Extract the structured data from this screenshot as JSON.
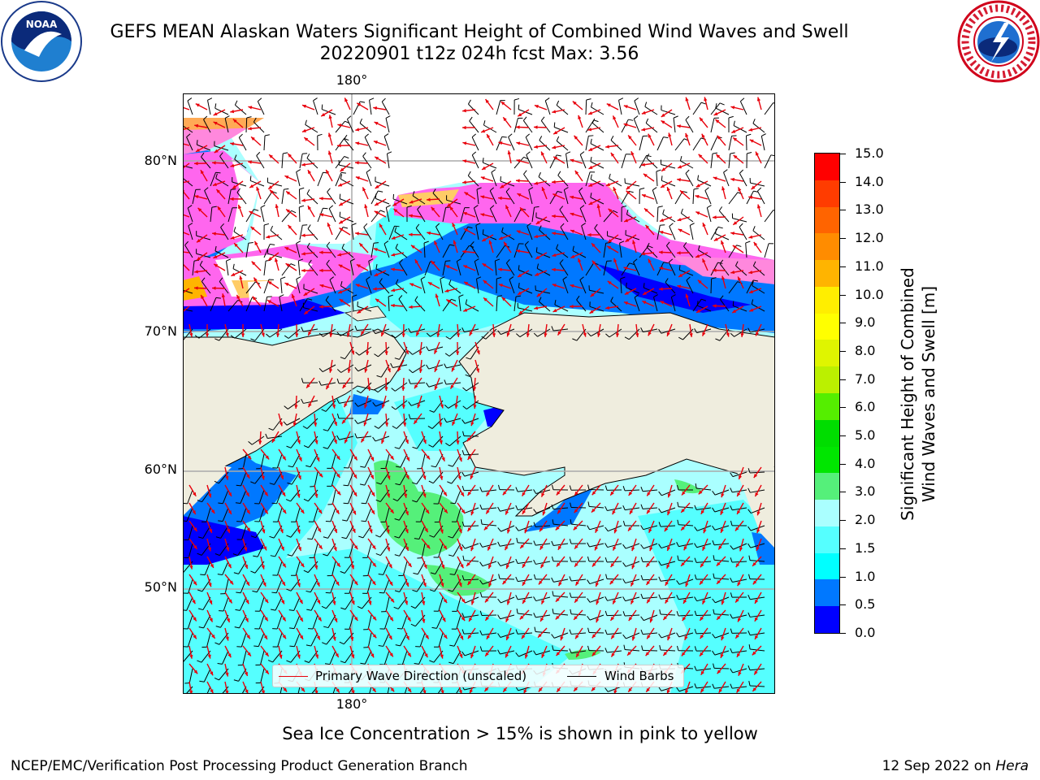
{
  "header": {
    "title_line1": "GEFS MEAN Alaskan Waters Significant Height of Combined Wind Waves and Swell",
    "title_line2": "20220901 t12z 024h fcst   Max: 3.56"
  },
  "logos": {
    "left": "NOAA",
    "right": "NATIONAL WEATHER SERVICE"
  },
  "map": {
    "lon_labels": [
      "180°",
      "180°"
    ],
    "lat_labels": [
      "80°N",
      "70°N",
      "60°N",
      "50°N"
    ],
    "legend": {
      "wave_direction": "Primary Wave Direction (unscaled)",
      "wind_barbs": "Wind Barbs",
      "wave_direction_color": "#e8000b",
      "wind_barb_color": "#000000"
    },
    "land_color": "#efedde",
    "sea_color": "#aaffff"
  },
  "colorbar": {
    "title_line1": "Significant Height of Combined",
    "title_line2": "Wind Waves and Swell [m]",
    "ticks": [
      "15.0",
      "14.0",
      "13.0",
      "12.0",
      "11.0",
      "10.0",
      "9.0",
      "8.0",
      "7.0",
      "6.0",
      "5.0",
      "4.0",
      "3.0",
      "2.0",
      "1.5",
      "1.0",
      "0.5",
      "0.0"
    ],
    "colors_bottom_to_top": [
      "#0000ff",
      "#0078ff",
      "#00ffff",
      "#55ffff",
      "#aaffff",
      "#55f07a",
      "#00e600",
      "#00dd00",
      "#55ee00",
      "#bbf000",
      "#dff500",
      "#ffff00",
      "#ffee00",
      "#ffb400",
      "#ff8c00",
      "#ff6400",
      "#ff3c00",
      "#ff0000"
    ]
  },
  "note": "Sea Ice Concentration > 15% is shown in pink to yellow",
  "footer": {
    "left": "NCEP/EMC/Verification Post Processing Product Generation Branch",
    "right_prefix": "12 Sep 2022 on ",
    "right_machine": "Hera"
  }
}
